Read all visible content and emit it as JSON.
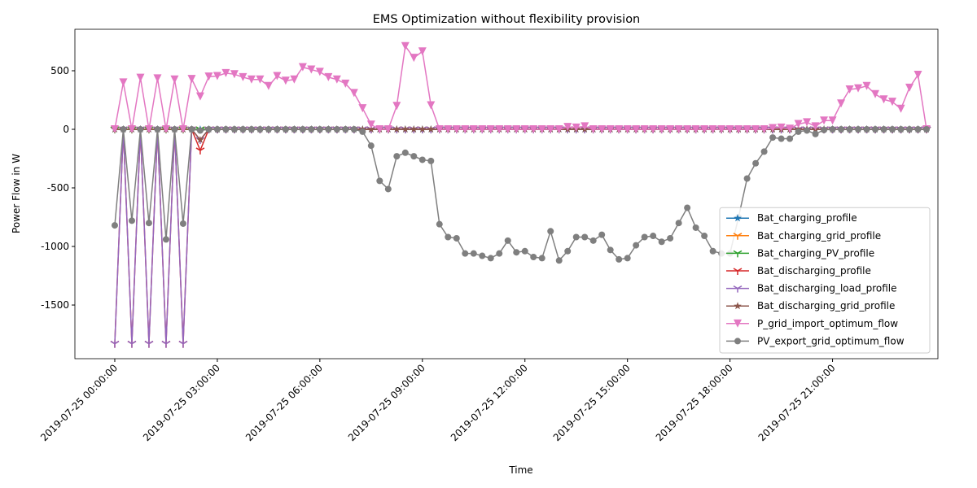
{
  "chart_data": {
    "type": "line",
    "title": "EMS Optimization without flexibility provision",
    "x_label": "Time",
    "y_label": "Power Flow in W",
    "x": [
      "2019-07-25 00:00:00",
      "2019-07-25 00:15:00",
      "2019-07-25 00:30:00",
      "2019-07-25 00:45:00",
      "2019-07-25 01:00:00",
      "2019-07-25 01:15:00",
      "2019-07-25 01:30:00",
      "2019-07-25 01:45:00",
      "2019-07-25 02:00:00",
      "2019-07-25 02:15:00",
      "2019-07-25 02:30:00",
      "2019-07-25 02:45:00",
      "2019-07-25 03:00:00",
      "2019-07-25 03:15:00",
      "2019-07-25 03:30:00",
      "2019-07-25 03:45:00",
      "2019-07-25 04:00:00",
      "2019-07-25 04:15:00",
      "2019-07-25 04:30:00",
      "2019-07-25 04:45:00",
      "2019-07-25 05:00:00",
      "2019-07-25 05:15:00",
      "2019-07-25 05:30:00",
      "2019-07-25 05:45:00",
      "2019-07-25 06:00:00",
      "2019-07-25 06:15:00",
      "2019-07-25 06:30:00",
      "2019-07-25 06:45:00",
      "2019-07-25 07:00:00",
      "2019-07-25 07:15:00",
      "2019-07-25 07:30:00",
      "2019-07-25 07:45:00",
      "2019-07-25 08:00:00",
      "2019-07-25 08:15:00",
      "2019-07-25 08:30:00",
      "2019-07-25 08:45:00",
      "2019-07-25 09:00:00",
      "2019-07-25 09:15:00",
      "2019-07-25 09:30:00",
      "2019-07-25 09:45:00",
      "2019-07-25 10:00:00",
      "2019-07-25 10:15:00",
      "2019-07-25 10:30:00",
      "2019-07-25 10:45:00",
      "2019-07-25 11:00:00",
      "2019-07-25 11:15:00",
      "2019-07-25 11:30:00",
      "2019-07-25 11:45:00",
      "2019-07-25 12:00:00",
      "2019-07-25 12:15:00",
      "2019-07-25 12:30:00",
      "2019-07-25 12:45:00",
      "2019-07-25 13:00:00",
      "2019-07-25 13:15:00",
      "2019-07-25 13:30:00",
      "2019-07-25 13:45:00",
      "2019-07-25 14:00:00",
      "2019-07-25 14:15:00",
      "2019-07-25 14:30:00",
      "2019-07-25 14:45:00",
      "2019-07-25 15:00:00",
      "2019-07-25 15:15:00",
      "2019-07-25 15:30:00",
      "2019-07-25 15:45:00",
      "2019-07-25 16:00:00",
      "2019-07-25 16:15:00",
      "2019-07-25 16:30:00",
      "2019-07-25 16:45:00",
      "2019-07-25 17:00:00",
      "2019-07-25 17:15:00",
      "2019-07-25 17:30:00",
      "2019-07-25 17:45:00",
      "2019-07-25 18:00:00",
      "2019-07-25 18:15:00",
      "2019-07-25 18:30:00",
      "2019-07-25 18:45:00",
      "2019-07-25 19:00:00",
      "2019-07-25 19:15:00",
      "2019-07-25 19:30:00",
      "2019-07-25 19:45:00",
      "2019-07-25 20:00:00",
      "2019-07-25 20:15:00",
      "2019-07-25 20:30:00",
      "2019-07-25 20:45:00",
      "2019-07-25 21:00:00",
      "2019-07-25 21:15:00",
      "2019-07-25 21:30:00",
      "2019-07-25 21:45:00",
      "2019-07-25 22:00:00",
      "2019-07-25 22:15:00",
      "2019-07-25 22:30:00",
      "2019-07-25 22:45:00",
      "2019-07-25 23:00:00",
      "2019-07-25 23:15:00",
      "2019-07-25 23:30:00",
      "2019-07-25 23:45:00"
    ],
    "xlim": [
      "2019-07-24 22:50:00",
      "2019-07-26 00:05:00"
    ],
    "xticks": [
      "2019-07-25 00:00:00",
      "2019-07-25 03:00:00",
      "2019-07-25 06:00:00",
      "2019-07-25 09:00:00",
      "2019-07-25 12:00:00",
      "2019-07-25 15:00:00",
      "2019-07-25 18:00:00",
      "2019-07-25 21:00:00"
    ],
    "ylim": [
      -1958,
      854
    ],
    "yticks": [
      -1500,
      -1000,
      -500,
      0,
      500
    ],
    "grid": false,
    "legend": "lower right",
    "series": [
      {
        "name": "Bat_charging_profile",
        "color": "#1f77b4",
        "marker": "star",
        "values": [
          0,
          0,
          0,
          0,
          0,
          0,
          0,
          0,
          0,
          0,
          0,
          0,
          0,
          0,
          0,
          0,
          0,
          0,
          0,
          0,
          0,
          0,
          0,
          0,
          0,
          0,
          0,
          0,
          0,
          0,
          0,
          0,
          0,
          0,
          0,
          0,
          0,
          0,
          0,
          0,
          0,
          0,
          0,
          0,
          0,
          0,
          0,
          0,
          0,
          0,
          0,
          0,
          0,
          0,
          0,
          0,
          0,
          0,
          0,
          0,
          0,
          0,
          0,
          0,
          0,
          0,
          0,
          0,
          0,
          0,
          0,
          0,
          0,
          0,
          0,
          0,
          0,
          0,
          0,
          0,
          0,
          0,
          0,
          0,
          0,
          0,
          0,
          0,
          0,
          0,
          0,
          0,
          0,
          0,
          0,
          0
        ]
      },
      {
        "name": "Bat_charging_grid_profile",
        "color": "#ff7f0e",
        "marker": "tri",
        "values": [
          0,
          0,
          0,
          0,
          0,
          0,
          0,
          0,
          0,
          0,
          0,
          0,
          0,
          0,
          0,
          0,
          0,
          0,
          0,
          0,
          0,
          0,
          0,
          0,
          0,
          0,
          0,
          0,
          0,
          0,
          0,
          0,
          0,
          0,
          0,
          0,
          0,
          0,
          0,
          0,
          0,
          0,
          0,
          0,
          0,
          0,
          0,
          0,
          0,
          0,
          0,
          0,
          0,
          0,
          0,
          0,
          0,
          0,
          0,
          0,
          0,
          0,
          0,
          0,
          0,
          0,
          0,
          0,
          0,
          0,
          0,
          0,
          0,
          0,
          0,
          0,
          0,
          0,
          0,
          0,
          0,
          0,
          0,
          0,
          0,
          0,
          0,
          0,
          0,
          0,
          0,
          0,
          0,
          0,
          0,
          0
        ]
      },
      {
        "name": "Bat_charging_PV_profile",
        "color": "#2ca02c",
        "marker": "tri",
        "values": [
          0,
          0,
          0,
          0,
          0,
          0,
          0,
          0,
          0,
          0,
          0,
          0,
          0,
          0,
          0,
          0,
          0,
          0,
          0,
          0,
          0,
          0,
          0,
          0,
          0,
          0,
          0,
          0,
          0,
          0,
          0,
          0,
          0,
          0,
          0,
          0,
          0,
          0,
          0,
          0,
          0,
          0,
          0,
          0,
          0,
          0,
          0,
          0,
          0,
          0,
          0,
          0,
          0,
          0,
          0,
          0,
          0,
          0,
          0,
          0,
          0,
          0,
          0,
          0,
          0,
          0,
          0,
          0,
          0,
          0,
          0,
          0,
          0,
          0,
          0,
          0,
          0,
          0,
          0,
          0,
          0,
          0,
          0,
          0,
          0,
          0,
          0,
          0,
          0,
          0,
          0,
          0,
          0,
          0,
          0,
          0
        ]
      },
      {
        "name": "Bat_discharging_profile",
        "color": "#d62728",
        "marker": "tri",
        "values": [
          -1830,
          0,
          -1830,
          0,
          -1830,
          0,
          -1830,
          0,
          -1830,
          0,
          -180,
          0,
          0,
          0,
          0,
          0,
          0,
          0,
          0,
          0,
          0,
          0,
          0,
          0,
          0,
          0,
          0,
          0,
          0,
          0,
          0,
          0,
          0,
          0,
          0,
          0,
          0,
          0,
          0,
          0,
          0,
          0,
          0,
          0,
          0,
          0,
          0,
          0,
          0,
          0,
          0,
          0,
          0,
          0,
          0,
          0,
          0,
          0,
          0,
          0,
          0,
          0,
          0,
          0,
          0,
          0,
          0,
          0,
          0,
          0,
          0,
          0,
          0,
          0,
          0,
          0,
          0,
          0,
          0,
          0,
          0,
          0,
          0,
          0,
          0,
          0,
          0,
          0,
          0,
          0,
          0,
          0,
          0,
          0,
          0,
          0
        ]
      },
      {
        "name": "Bat_discharging_load_profile",
        "color": "#9467bd",
        "marker": "tri",
        "values": [
          -1830,
          0,
          -1830,
          0,
          -1830,
          0,
          -1830,
          0,
          -1830,
          0,
          -90,
          0,
          0,
          0,
          0,
          0,
          0,
          0,
          0,
          0,
          0,
          0,
          0,
          0,
          0,
          0,
          0,
          0,
          0,
          0,
          0,
          0,
          0,
          0,
          0,
          0,
          0,
          0,
          0,
          0,
          0,
          0,
          0,
          0,
          0,
          0,
          0,
          0,
          0,
          0,
          0,
          0,
          0,
          0,
          0,
          0,
          0,
          0,
          0,
          0,
          0,
          0,
          0,
          0,
          0,
          0,
          0,
          0,
          0,
          0,
          0,
          0,
          0,
          0,
          0,
          0,
          0,
          0,
          0,
          0,
          0,
          0,
          0,
          0,
          0,
          0,
          0,
          0,
          0,
          0,
          0,
          0,
          0,
          0,
          0,
          0
        ]
      },
      {
        "name": "Bat_discharging_grid_profile",
        "color": "#8c564b",
        "marker": "star",
        "values": [
          0,
          0,
          0,
          0,
          0,
          0,
          0,
          0,
          0,
          0,
          -90,
          0,
          0,
          0,
          0,
          0,
          0,
          0,
          0,
          0,
          0,
          0,
          0,
          0,
          0,
          0,
          0,
          0,
          0,
          0,
          0,
          0,
          0,
          0,
          0,
          0,
          0,
          0,
          0,
          0,
          0,
          0,
          0,
          0,
          0,
          0,
          0,
          0,
          0,
          0,
          0,
          0,
          0,
          0,
          0,
          0,
          0,
          0,
          0,
          0,
          0,
          0,
          0,
          0,
          0,
          0,
          0,
          0,
          0,
          0,
          0,
          0,
          0,
          0,
          0,
          0,
          0,
          0,
          0,
          0,
          0,
          0,
          0,
          0,
          0,
          0,
          0,
          0,
          0,
          0,
          0,
          0,
          0,
          0,
          0,
          0
        ]
      },
      {
        "name": "P_grid_import_optimum_flow",
        "color": "#e377c2",
        "marker": "triangle_down",
        "values": [
          0,
          400,
          0,
          440,
          0,
          435,
          0,
          425,
          0,
          430,
          280,
          450,
          455,
          480,
          470,
          445,
          425,
          425,
          370,
          455,
          415,
          425,
          530,
          510,
          490,
          445,
          425,
          390,
          310,
          180,
          40,
          0,
          0,
          200,
          710,
          610,
          665,
          205,
          0,
          0,
          0,
          0,
          0,
          0,
          0,
          0,
          0,
          0,
          0,
          0,
          0,
          0,
          0,
          20,
          15,
          25,
          0,
          0,
          0,
          0,
          0,
          0,
          0,
          0,
          0,
          0,
          0,
          0,
          0,
          0,
          0,
          0,
          0,
          0,
          0,
          0,
          0,
          10,
          15,
          5,
          45,
          60,
          25,
          75,
          75,
          220,
          340,
          350,
          370,
          300,
          255,
          235,
          175,
          355,
          465,
          0
        ]
      },
      {
        "name": "PV_export_grid_optimum_flow",
        "color": "#7f7f7f",
        "marker": "circle",
        "values": [
          -820,
          0,
          -780,
          0,
          -800,
          0,
          -940,
          0,
          -805,
          0,
          -10,
          0,
          0,
          0,
          0,
          0,
          0,
          0,
          0,
          0,
          0,
          0,
          0,
          0,
          0,
          0,
          0,
          0,
          0,
          -20,
          -140,
          -440,
          -510,
          -230,
          -200,
          -230,
          -260,
          -270,
          -810,
          -920,
          -930,
          -1060,
          -1060,
          -1080,
          -1100,
          -1060,
          -950,
          -1050,
          -1040,
          -1090,
          -1100,
          -870,
          -1120,
          -1040,
          -920,
          -920,
          -950,
          -900,
          -1030,
          -1110,
          -1100,
          -990,
          -920,
          -910,
          -960,
          -930,
          -800,
          -670,
          -840,
          -910,
          -1040,
          -1060,
          -1060,
          -750,
          -420,
          -290,
          -190,
          -70,
          -80,
          -80,
          -20,
          -10,
          -40,
          -5,
          0,
          0,
          0,
          0,
          0,
          0,
          0,
          0,
          0,
          0,
          0,
          0
        ]
      }
    ]
  }
}
